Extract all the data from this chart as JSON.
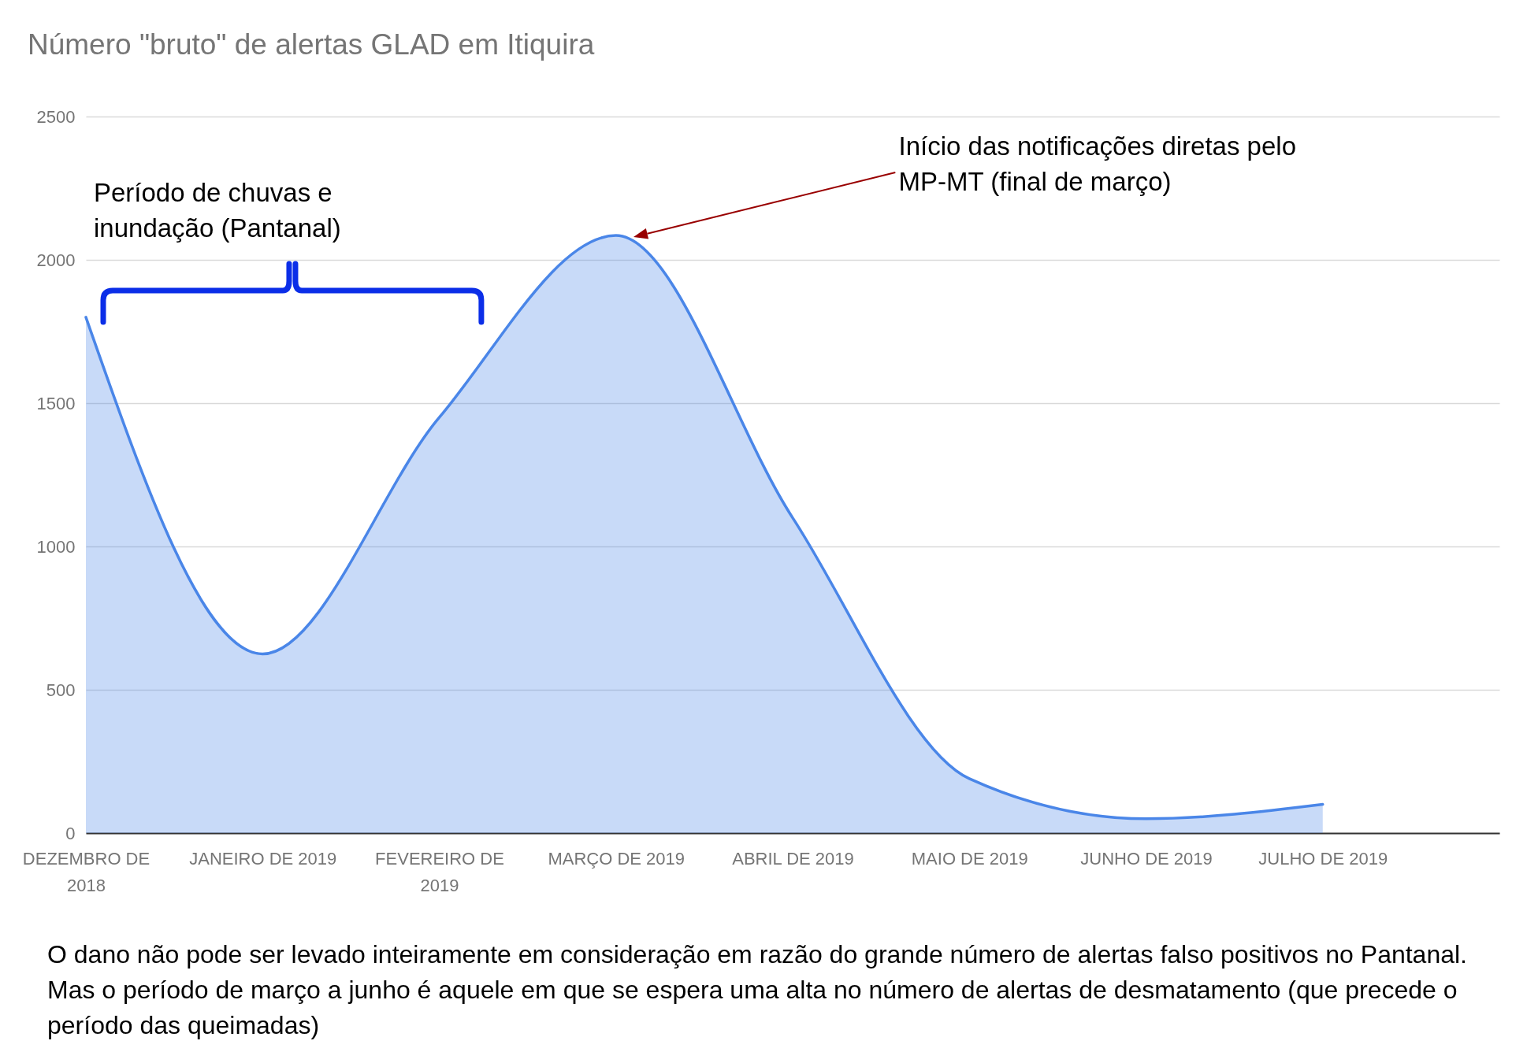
{
  "chart_data": {
    "type": "area",
    "title": "Número \"bruto\" de alertas GLAD em Itiquira",
    "categories": [
      "DEZEMBRO DE 2018",
      "JANEIRO DE 2019",
      "FEVEREIRO DE 2019",
      "MARÇO DE 2019",
      "ABRIL DE 2019",
      "MAIO DE 2019",
      "JUNHO DE 2019",
      "JULHO DE 2019"
    ],
    "values": [
      1800,
      625,
      1450,
      2085,
      1100,
      190,
      50,
      100
    ],
    "color": "#4a86e8",
    "ylim": [
      0,
      2500
    ],
    "yticks": [
      0,
      500,
      1000,
      1500,
      2000,
      2500
    ],
    "grid": "y",
    "annotations": [
      "Período de chuvas e inundação (Pantanal)",
      "Início das notificações diretas pelo MP-MT (final de março)",
      "O dano não pode ser levado inteiramente em consideração em razão do grande número de alertas falso positivos no Pantanal. Mas o período de março a junho é aquele em que se espera uma alta no número de alertas de desmatamento (que precede o período das queimadas)"
    ]
  }
}
